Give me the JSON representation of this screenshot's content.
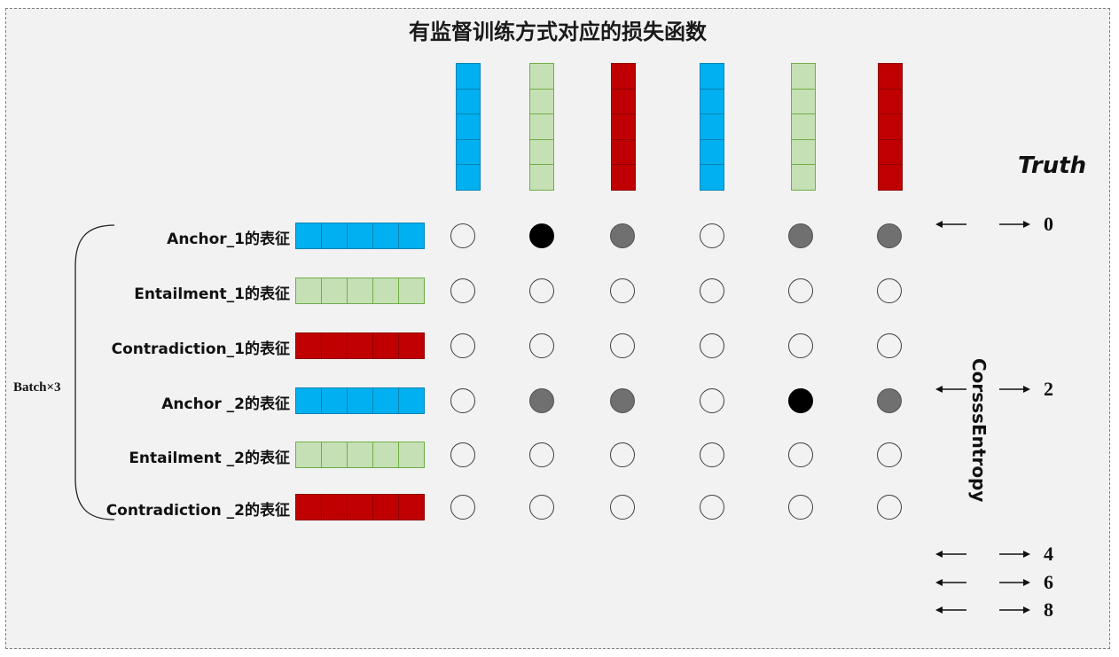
{
  "title": "有监督训练方式对应的损失函数",
  "colors": {
    "anchor": "#00b0f0",
    "entailment": "#c5e0b4",
    "entailment_border": "#70ad47",
    "contradiction": "#c00000",
    "background": "#f2f2f2",
    "dot_black": "#000000",
    "dot_gray": "#707070"
  },
  "columns": [
    {
      "kind": "anchor"
    },
    {
      "kind": "entailment"
    },
    {
      "kind": "contradiction"
    },
    {
      "kind": "anchor"
    },
    {
      "kind": "entailment"
    },
    {
      "kind": "contradiction"
    }
  ],
  "rows": [
    {
      "label": "Anchor_1的表征",
      "kind": "anchor",
      "dots": [
        "empty",
        "black",
        "gray",
        "empty",
        "gray",
        "gray"
      ]
    },
    {
      "label": "Entailment_1的表征",
      "kind": "entailment",
      "dots": [
        "empty",
        "empty",
        "empty",
        "empty",
        "empty",
        "empty"
      ]
    },
    {
      "label": "Contradiction_1的表征",
      "kind": "contradiction",
      "dots": [
        "empty",
        "empty",
        "empty",
        "empty",
        "empty",
        "empty"
      ]
    },
    {
      "label": "Anchor _2的表征",
      "kind": "anchor",
      "dots": [
        "empty",
        "gray",
        "gray",
        "empty",
        "black",
        "gray"
      ]
    },
    {
      "label": "Entailment _2的表征",
      "kind": "entailment",
      "dots": [
        "empty",
        "empty",
        "empty",
        "empty",
        "empty",
        "empty"
      ]
    },
    {
      "label": "Contradiction _2的表征",
      "kind": "contradiction",
      "dots": [
        "empty",
        "empty",
        "empty",
        "empty",
        "empty",
        "empty"
      ]
    }
  ],
  "batch_label": "Batch×3",
  "truth_label": "Truth",
  "loss_label": "CorsssEntropy",
  "truth_values": [
    "0",
    "2",
    "4",
    "6",
    "8"
  ]
}
